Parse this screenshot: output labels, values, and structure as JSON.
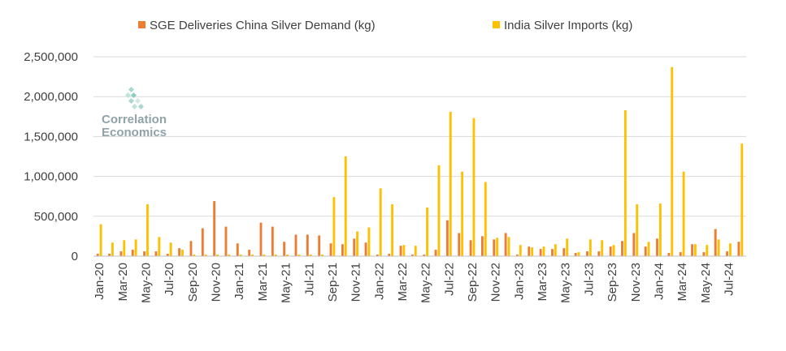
{
  "chart_data": {
    "type": "bar",
    "title": "",
    "xlabel": "",
    "ylabel": "",
    "ylim": [
      0,
      2500000
    ],
    "yticks": [
      "0",
      "500,000",
      "1,000,000",
      "1,500,000",
      "2,000,000",
      "2,500,000"
    ],
    "grid": true,
    "legend_position": "top",
    "watermark": {
      "line1": "Correlation",
      "line2": "Economics"
    },
    "categories": [
      "Jan-20",
      "Feb-20",
      "Mar-20",
      "Apr-20",
      "May-20",
      "Jun-20",
      "Jul-20",
      "Aug-20",
      "Sep-20",
      "Oct-20",
      "Nov-20",
      "Dec-20",
      "Jan-21",
      "Feb-21",
      "Mar-21",
      "Apr-21",
      "May-21",
      "Jun-21",
      "Jul-21",
      "Aug-21",
      "Sep-21",
      "Oct-21",
      "Nov-21",
      "Dec-21",
      "Jan-22",
      "Feb-22",
      "Mar-22",
      "Apr-22",
      "May-22",
      "Jun-22",
      "Jul-22",
      "Aug-22",
      "Sep-22",
      "Oct-22",
      "Nov-22",
      "Dec-22",
      "Jan-23",
      "Feb-23",
      "Mar-23",
      "Apr-23",
      "May-23",
      "Jun-23",
      "Jul-23",
      "Aug-23",
      "Sep-23",
      "Oct-23",
      "Nov-23",
      "Dec-23",
      "Jan-24",
      "Feb-24",
      "Mar-24",
      "Apr-24",
      "May-24",
      "Jun-24",
      "Jul-24",
      "Aug-24"
    ],
    "tick_labels": [
      "Jan-20",
      "Mar-20",
      "May-20",
      "Jul-20",
      "Sep-20",
      "Nov-20",
      "Jan-21",
      "Mar-21",
      "May-21",
      "Jul-21",
      "Sep-21",
      "Nov-21",
      "Jan-22",
      "Mar-22",
      "May-22",
      "Jul-22",
      "Sep-22",
      "Nov-22",
      "Jan-23",
      "Mar-23",
      "May-23",
      "Jul-23",
      "Sep-23",
      "Nov-23",
      "Jan-24",
      "Mar-24",
      "May-24",
      "Jul-24"
    ],
    "series": [
      {
        "name": "SGE Deliveries China Silver Demand (kg)",
        "color": "#ED7D31",
        "values": [
          30000,
          30000,
          60000,
          80000,
          60000,
          60000,
          30000,
          100000,
          190000,
          350000,
          690000,
          370000,
          160000,
          80000,
          420000,
          370000,
          180000,
          270000,
          270000,
          260000,
          160000,
          150000,
          220000,
          170000,
          20000,
          30000,
          130000,
          20000,
          20000,
          80000,
          450000,
          290000,
          200000,
          250000,
          210000,
          290000,
          20000,
          120000,
          90000,
          90000,
          100000,
          40000,
          60000,
          60000,
          120000,
          190000,
          290000,
          120000,
          220000,
          40000,
          50000,
          150000,
          50000,
          340000,
          60000,
          180000
        ]
      },
      {
        "name": "India Silver Imports (kg)",
        "color": "#FFC000",
        "values": [
          400000,
          170000,
          200000,
          210000,
          650000,
          240000,
          170000,
          80000,
          20000,
          20000,
          20000,
          20000,
          20000,
          20000,
          20000,
          20000,
          20000,
          20000,
          20000,
          20000,
          740000,
          1250000,
          310000,
          360000,
          850000,
          650000,
          140000,
          130000,
          610000,
          1140000,
          1810000,
          1060000,
          1730000,
          930000,
          230000,
          240000,
          140000,
          110000,
          120000,
          150000,
          220000,
          50000,
          210000,
          200000,
          140000,
          1830000,
          650000,
          180000,
          660000,
          2370000,
          1060000,
          150000,
          140000,
          210000,
          160000,
          1410000
        ]
      }
    ]
  }
}
